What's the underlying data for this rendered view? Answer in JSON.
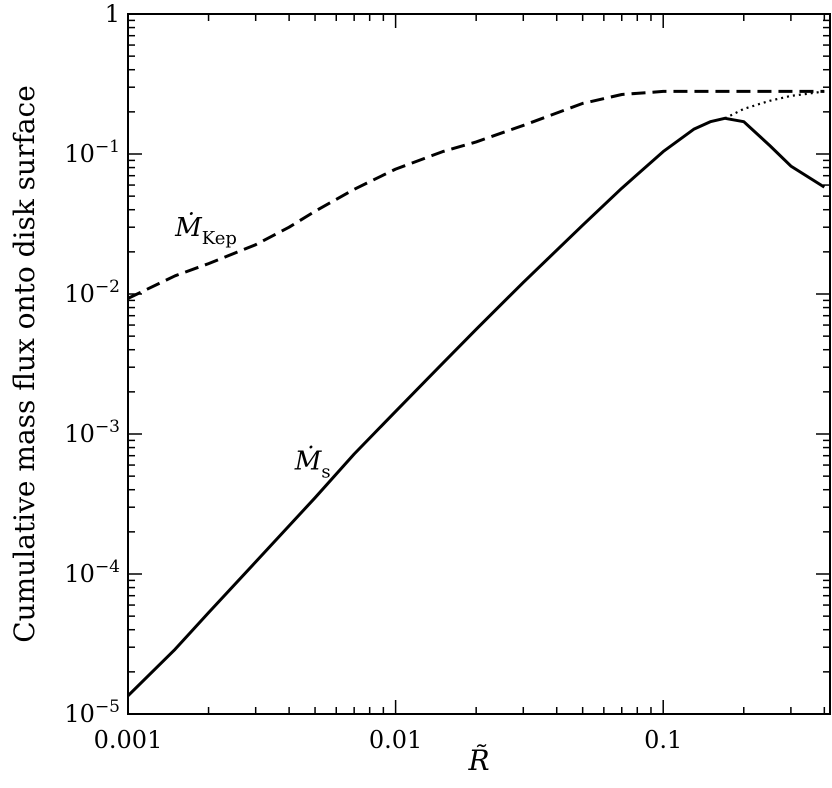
{
  "chart_data": {
    "type": "line",
    "xscale": "log",
    "yscale": "log",
    "xlim": [
      0.001,
      0.42
    ],
    "ylim": [
      1e-05,
      1
    ],
    "xlabel": "R̃",
    "ylabel": "Cumulative mass flux onto disk surface",
    "x_ticks": [
      {
        "value": 0.001,
        "label": "0.001"
      },
      {
        "value": 0.01,
        "label": "0.01"
      },
      {
        "value": 0.1,
        "label": "0.1"
      }
    ],
    "y_ticks": [
      {
        "value": 1,
        "mantissa": "1",
        "exponent": ""
      },
      {
        "value": 0.1,
        "mantissa": "10",
        "exponent": "−1"
      },
      {
        "value": 0.01,
        "mantissa": "10",
        "exponent": "−2"
      },
      {
        "value": 0.001,
        "mantissa": "10",
        "exponent": "−3"
      },
      {
        "value": 0.0001,
        "mantissa": "10",
        "exponent": "−4"
      },
      {
        "value": 1e-05,
        "mantissa": "10",
        "exponent": "−5"
      }
    ],
    "annotations": [
      {
        "text": "Ṁ",
        "sub": "Kep",
        "x": 0.0015,
        "y": 0.026
      },
      {
        "text": "Ṁ",
        "sub": "s",
        "x": 0.0042,
        "y": 0.00056
      }
    ],
    "series": [
      {
        "style": "dashed",
        "x": [
          0.001,
          0.0015,
          0.002,
          0.003,
          0.004,
          0.005,
          0.007,
          0.01,
          0.015,
          0.02,
          0.03,
          0.05,
          0.07,
          0.1,
          0.15,
          0.2,
          0.3,
          0.4
        ],
        "y": [
          0.0093,
          0.0135,
          0.0165,
          0.0225,
          0.03,
          0.039,
          0.056,
          0.078,
          0.104,
          0.122,
          0.16,
          0.23,
          0.266,
          0.28,
          0.28,
          0.28,
          0.28,
          0.28
        ]
      },
      {
        "style": "solid",
        "x": [
          0.001,
          0.0015,
          0.002,
          0.003,
          0.005,
          0.007,
          0.01,
          0.015,
          0.02,
          0.03,
          0.05,
          0.07,
          0.1,
          0.13,
          0.15,
          0.17,
          0.2,
          0.25,
          0.3,
          0.4
        ],
        "y": [
          1.35e-05,
          2.9e-05,
          5.3e-05,
          0.000122,
          0.00035,
          0.00072,
          0.00145,
          0.0032,
          0.0056,
          0.0121,
          0.031,
          0.057,
          0.104,
          0.15,
          0.17,
          0.18,
          0.17,
          0.115,
          0.082,
          0.058
        ]
      },
      {
        "style": "dotted",
        "x": [
          0.17,
          0.2,
          0.25,
          0.3,
          0.35,
          0.4
        ],
        "y": [
          0.18,
          0.21,
          0.24,
          0.26,
          0.27,
          0.28
        ]
      }
    ]
  }
}
